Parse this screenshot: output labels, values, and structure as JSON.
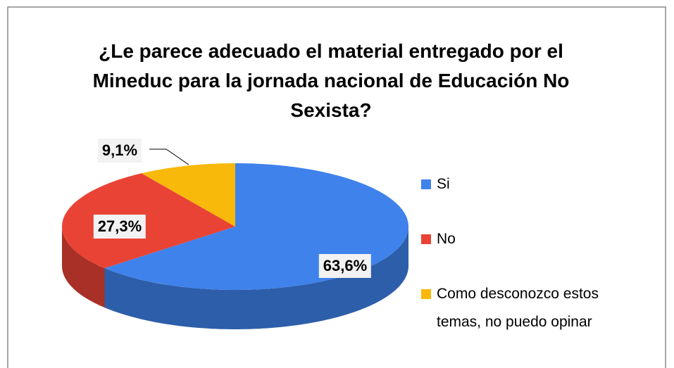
{
  "chart_data": {
    "type": "pie",
    "title": "¿Le parece adecuado el material entregado por el Mineduc para la jornada nacional de Educación No Sexista?",
    "categories": [
      "Si",
      "No",
      "Como desconozco estos temas, no puedo opinar"
    ],
    "values": [
      63.6,
      27.3,
      9.1
    ],
    "value_labels": [
      "63,6%",
      "27,3%",
      "9,1%"
    ],
    "colors": [
      "#3f82ec",
      "#e94335",
      "#f9b90a"
    ],
    "legend": "right"
  }
}
